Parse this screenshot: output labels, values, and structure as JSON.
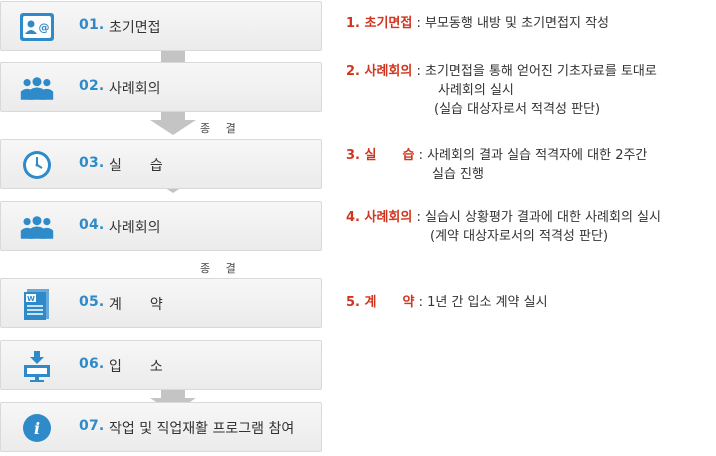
{
  "steps": [
    {
      "num": "01.",
      "label": "초기면접",
      "icon": "contact-card-icon"
    },
    {
      "num": "02.",
      "label": "사례회의",
      "icon": "people-group-icon"
    },
    {
      "num": "03.",
      "label": "실　　습",
      "icon": "clock-icon"
    },
    {
      "num": "04.",
      "label": "사례회의",
      "icon": "people-group-icon"
    },
    {
      "num": "05.",
      "label": "계　　약",
      "icon": "document-icon"
    },
    {
      "num": "06.",
      "label": "입　　소",
      "icon": "monitor-arrow-icon"
    },
    {
      "num": "07.",
      "label": "작업 및 직업재활 프로그램 참여",
      "icon": "info-icon"
    }
  ],
  "connectors": {
    "conclude_1": "종 결",
    "conclude_2": "종 결"
  },
  "descriptions": [
    {
      "title": "1. 초기면접",
      "sep": " : ",
      "lines": [
        "부모동행 내방 및 초기면접지 작성"
      ]
    },
    {
      "title": "2. 사례회의",
      "sep": " : ",
      "lines": [
        "초기면접을 통해 얻어진 기초자료를 토대로",
        "사례회의 실시",
        "(실습 대상자로서 적격성 판단)"
      ]
    },
    {
      "title": "3. 실　　습",
      "sep": " : ",
      "lines": [
        "사례회의 결과 실습 적격자에 대한 2주간",
        "실습 진행"
      ]
    },
    {
      "title": "4. 사례회의",
      "sep": " : ",
      "lines": [
        "실습시 상황평가 결과에 대한 사례회의 실시",
        "(계약 대상자로서의 적격성 판단)"
      ]
    },
    {
      "title": "5. 계　　약",
      "sep": " : ",
      "lines": [
        "1년 간 입소 계약 실시"
      ]
    }
  ],
  "colors": {
    "accent_blue": "#2e8ac9",
    "title_red": "#d0361f",
    "arrow_gray": "#c4c4c4"
  }
}
